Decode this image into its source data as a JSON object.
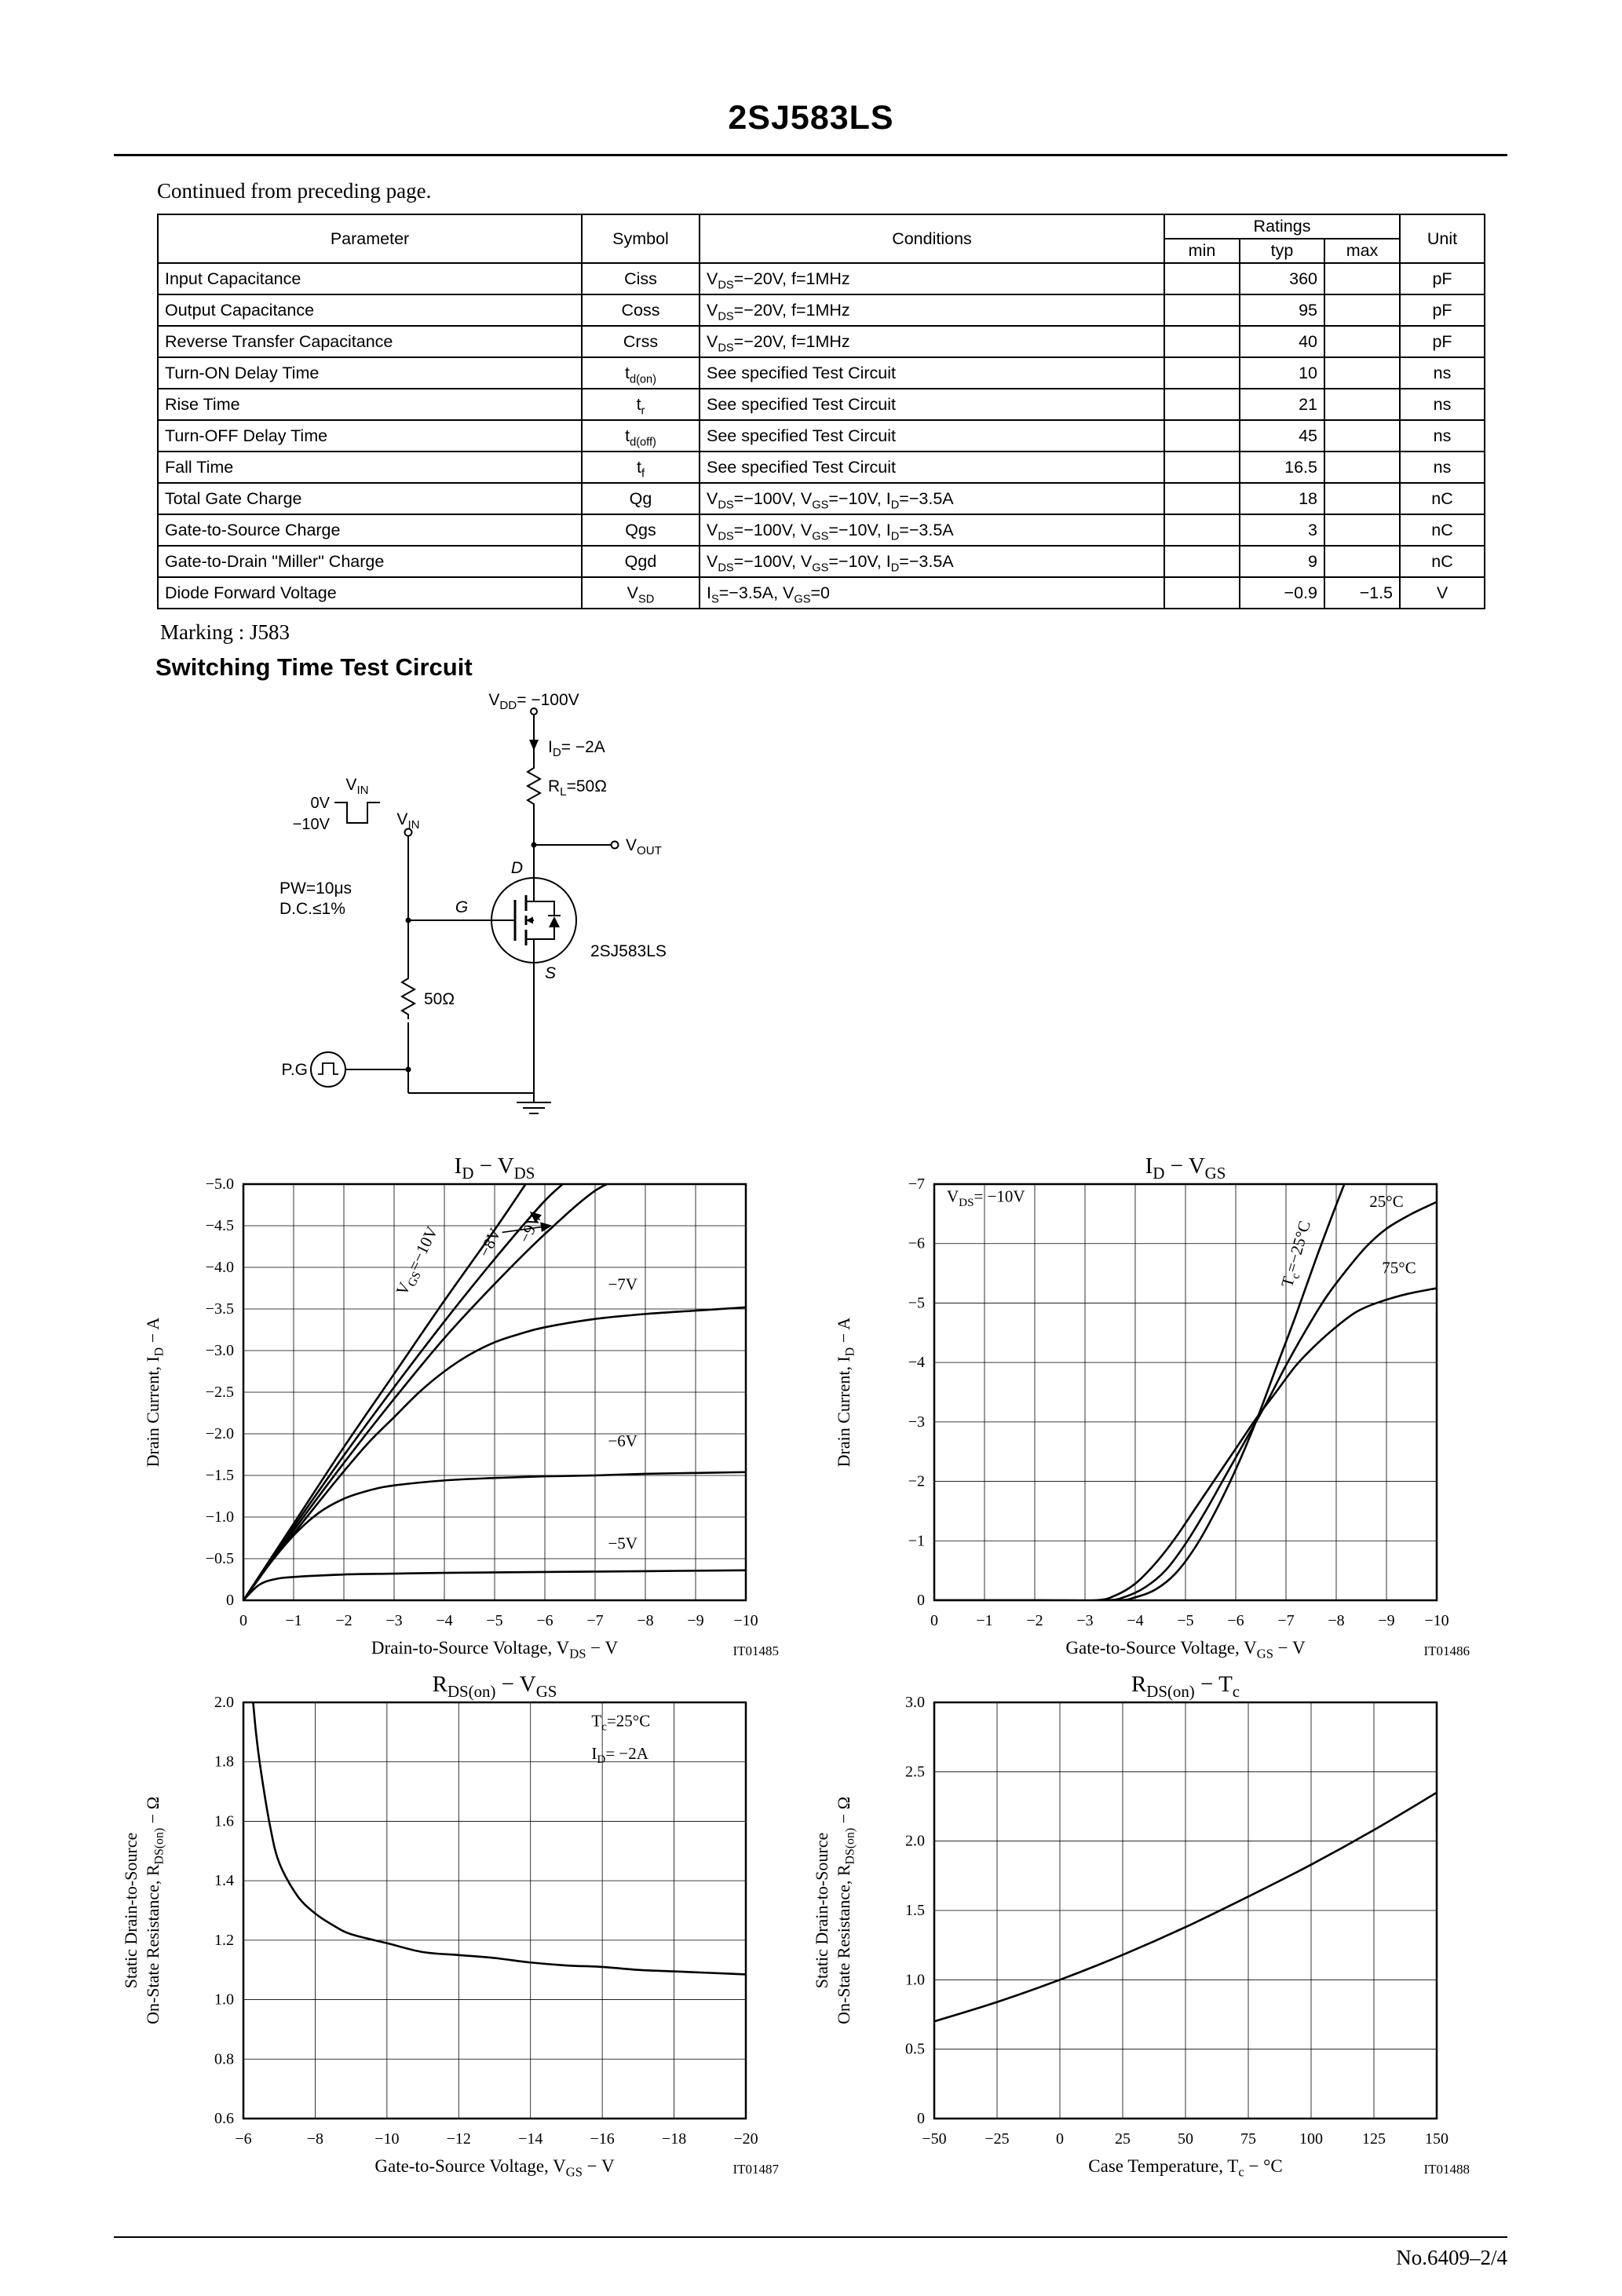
{
  "page": {
    "title": "2SJ583LS",
    "continued": "Continued from preceding page.",
    "marking": "Marking : J583",
    "section_heading": "Switching Time Test Circuit",
    "footer": "No.6409–2/4"
  },
  "table": {
    "header": {
      "parameter": "Parameter",
      "symbol": "Symbol",
      "conditions": "Conditions",
      "ratings": "Ratings",
      "min": "min",
      "typ": "typ",
      "max": "max",
      "unit": "Unit"
    },
    "rows": [
      {
        "parameter": "Input Capacitance",
        "symbol": "Ciss",
        "conditions": "V_{DS}=−20V, f=1MHz",
        "min": "",
        "typ": "360",
        "max": "",
        "unit": "pF"
      },
      {
        "parameter": "Output Capacitance",
        "symbol": "Coss",
        "conditions": "V_{DS}=−20V, f=1MHz",
        "min": "",
        "typ": "95",
        "max": "",
        "unit": "pF"
      },
      {
        "parameter": "Reverse Transfer Capacitance",
        "symbol": "Crss",
        "conditions": "V_{DS}=−20V, f=1MHz",
        "min": "",
        "typ": "40",
        "max": "",
        "unit": "pF"
      },
      {
        "parameter": "Turn-ON Delay Time",
        "symbol": "t_{d(on)}",
        "conditions": "See specified Test Circuit",
        "min": "",
        "typ": "10",
        "max": "",
        "unit": "ns"
      },
      {
        "parameter": "Rise Time",
        "symbol": "t_{r}",
        "conditions": "See specified Test Circuit",
        "min": "",
        "typ": "21",
        "max": "",
        "unit": "ns"
      },
      {
        "parameter": "Turn-OFF Delay Time",
        "symbol": "t_{d(off)}",
        "conditions": "See specified Test Circuit",
        "min": "",
        "typ": "45",
        "max": "",
        "unit": "ns"
      },
      {
        "parameter": "Fall Time",
        "symbol": "t_{f}",
        "conditions": "See specified Test Circuit",
        "min": "",
        "typ": "16.5",
        "max": "",
        "unit": "ns"
      },
      {
        "parameter": "Total Gate Charge",
        "symbol": "Qg",
        "conditions": "V_{DS}=−100V, V_{GS}=−10V, I_{D}=−3.5A",
        "min": "",
        "typ": "18",
        "max": "",
        "unit": "nC"
      },
      {
        "parameter": "Gate-to-Source Charge",
        "symbol": "Qgs",
        "conditions": "V_{DS}=−100V, V_{GS}=−10V, I_{D}=−3.5A",
        "min": "",
        "typ": "3",
        "max": "",
        "unit": "nC"
      },
      {
        "parameter": "Gate-to-Drain \"Miller\" Charge",
        "symbol": "Qgd",
        "conditions": "V_{DS}=−100V, V_{GS}=−10V, I_{D}=−3.5A",
        "min": "",
        "typ": "9",
        "max": "",
        "unit": "nC"
      },
      {
        "parameter": "Diode Forward Voltage",
        "symbol": "V_{SD}",
        "conditions": "I_{S}=−3.5A, V_{GS}=0",
        "min": "",
        "typ": "−0.9",
        "max": "−1.5",
        "unit": "V"
      }
    ]
  },
  "circuit": {
    "labels": {
      "vdd": "V_{DD}= −100V",
      "id": "I_{D}= −2A",
      "rl": "R_{L}=50Ω",
      "vout": "V_{OUT}",
      "vin": "V_{IN}",
      "vin_wave": "V_{IN}",
      "v0": "0V",
      "vm10": "−10V",
      "pw": "PW=10μs",
      "dc": "D.C.≤1%",
      "pg": "P.G",
      "r50": "50Ω",
      "d": "D",
      "g": "G",
      "s": "S",
      "device": "2SJ583LS"
    }
  },
  "chart_data": [
    {
      "type": "line",
      "title": "I_{D} − V_{DS}",
      "ref": "IT01485",
      "xlabel": "Drain-to-Source Voltage, V_{DS} − V",
      "ylabel_lines": [
        "Drain Current, I_{D} − A"
      ],
      "xlim": [
        0,
        -10
      ],
      "ylim": [
        0,
        -5
      ],
      "grid": true,
      "xtick_vals": [
        0,
        -1,
        -2,
        -3,
        -4,
        -5,
        -6,
        -7,
        -8,
        -9,
        -10
      ],
      "xtick_labels": [
        "0",
        "−1",
        "−2",
        "−3",
        "−4",
        "−5",
        "−6",
        "−7",
        "−8",
        "−9",
        "−10"
      ],
      "ytick_vals": [
        0,
        -0.5,
        -1,
        -1.5,
        -2,
        -2.5,
        -3,
        -3.5,
        -4,
        -4.5,
        -5
      ],
      "ytick_labels": [
        "0",
        "−0.5",
        "−1.0",
        "−1.5",
        "−2.0",
        "−2.5",
        "−3.0",
        "−3.5",
        "−4.0",
        "−4.5",
        "−5.0"
      ],
      "series": [
        {
          "name": "VGS=−10V",
          "points": [
            [
              0,
              0
            ],
            [
              -1,
              -0.92
            ],
            [
              -2,
              -1.84
            ],
            [
              -3,
              -2.72
            ],
            [
              -4,
              -3.6
            ],
            [
              -5,
              -4.45
            ],
            [
              -5.75,
              -5.12
            ]
          ]
        },
        {
          "name": "VGS=−9V",
          "points": [
            [
              0,
              0
            ],
            [
              -1,
              -0.88
            ],
            [
              -2,
              -1.74
            ],
            [
              -3,
              -2.56
            ],
            [
              -4,
              -3.35
            ],
            [
              -5,
              -4.1
            ],
            [
              -6,
              -4.8
            ],
            [
              -6.6,
              -5.12
            ]
          ]
        },
        {
          "name": "VGS=−8V",
          "points": [
            [
              0,
              0
            ],
            [
              -1,
              -0.84
            ],
            [
              -2,
              -1.65
            ],
            [
              -3,
              -2.42
            ],
            [
              -4,
              -3.15
            ],
            [
              -5,
              -3.8
            ],
            [
              -6,
              -4.4
            ],
            [
              -7,
              -4.92
            ],
            [
              -7.75,
              -5.12
            ]
          ]
        },
        {
          "name": "VGS=−7V",
          "points": [
            [
              0,
              0
            ],
            [
              -0.5,
              -0.42
            ],
            [
              -1,
              -0.8
            ],
            [
              -1.5,
              -1.18
            ],
            [
              -2,
              -1.55
            ],
            [
              -2.5,
              -1.9
            ],
            [
              -3,
              -2.2
            ],
            [
              -3.5,
              -2.5
            ],
            [
              -4,
              -2.75
            ],
            [
              -4.5,
              -2.95
            ],
            [
              -5,
              -3.1
            ],
            [
              -5.5,
              -3.2
            ],
            [
              -6,
              -3.28
            ],
            [
              -7,
              -3.38
            ],
            [
              -8,
              -3.44
            ],
            [
              -9,
              -3.48
            ],
            [
              -10,
              -3.52
            ]
          ]
        },
        {
          "name": "VGS=−6V",
          "points": [
            [
              0,
              0
            ],
            [
              -0.5,
              -0.42
            ],
            [
              -1,
              -0.78
            ],
            [
              -1.5,
              -1.05
            ],
            [
              -2,
              -1.22
            ],
            [
              -2.5,
              -1.32
            ],
            [
              -3,
              -1.38
            ],
            [
              -4,
              -1.44
            ],
            [
              -5,
              -1.47
            ],
            [
              -6,
              -1.49
            ],
            [
              -7,
              -1.5
            ],
            [
              -8,
              -1.52
            ],
            [
              -9,
              -1.53
            ],
            [
              -10,
              -1.54
            ]
          ]
        },
        {
          "name": "VGS=−5V",
          "points": [
            [
              0,
              0
            ],
            [
              -0.3,
              -0.18
            ],
            [
              -0.6,
              -0.25
            ],
            [
              -1,
              -0.28
            ],
            [
              -2,
              -0.31
            ],
            [
              -3,
              -0.32
            ],
            [
              -4,
              -0.33
            ],
            [
              -6,
              -0.34
            ],
            [
              -8,
              -0.35
            ],
            [
              -10,
              -0.36
            ]
          ]
        }
      ],
      "annotations": [
        {
          "text": "V_{GS}=−10V",
          "x": -3.55,
          "y": -4.05,
          "rot": -64
        },
        {
          "text": "−8V",
          "x": -5.0,
          "y": -4.27,
          "rot": -64,
          "leader": [
            -5.15,
            -4.42,
            -6.12,
            -4.5
          ]
        },
        {
          "text": "−9V",
          "x": -5.8,
          "y": -4.44,
          "rot": -64,
          "leader": [
            -5.9,
            -4.57,
            -5.72,
            -4.66
          ]
        },
        {
          "text": "−7V",
          "x": -7.55,
          "y": -3.73
        },
        {
          "text": "−6V",
          "x": -7.55,
          "y": -1.85
        },
        {
          "text": "−5V",
          "x": -7.55,
          "y": -0.62
        }
      ]
    },
    {
      "type": "line",
      "title": "I_{D} − V_{GS}",
      "ref": "IT01486",
      "xlabel": "Gate-to-Source Voltage, V_{GS} − V",
      "ylabel_lines": [
        "Drain Current, I_{D} − A"
      ],
      "xlim": [
        0,
        -10
      ],
      "ylim": [
        0,
        -7
      ],
      "grid": true,
      "xtick_vals": [
        0,
        -1,
        -2,
        -3,
        -4,
        -5,
        -6,
        -7,
        -8,
        -9,
        -10
      ],
      "xtick_labels": [
        "0",
        "−1",
        "−2",
        "−3",
        "−4",
        "−5",
        "−6",
        "−7",
        "−8",
        "−9",
        "−10"
      ],
      "ytick_vals": [
        0,
        -1,
        -2,
        -3,
        -4,
        -5,
        -6,
        -7
      ],
      "ytick_labels": [
        "0",
        "−1",
        "−2",
        "−3",
        "−4",
        "−5",
        "−6",
        "−7"
      ],
      "series": [
        {
          "name": "Tc=−25°C",
          "points": [
            [
              0,
              0
            ],
            [
              -2,
              0
            ],
            [
              -3.6,
              0
            ],
            [
              -4.0,
              -0.05
            ],
            [
              -4.4,
              -0.18
            ],
            [
              -4.8,
              -0.45
            ],
            [
              -5.2,
              -0.9
            ],
            [
              -5.6,
              -1.5
            ],
            [
              -6.0,
              -2.2
            ],
            [
              -6.4,
              -3.0
            ],
            [
              -6.8,
              -3.9
            ],
            [
              -7.2,
              -4.8
            ],
            [
              -7.6,
              -5.75
            ],
            [
              -8.0,
              -6.65
            ],
            [
              -8.3,
              -7.3
            ]
          ]
        },
        {
          "name": "Tc=25°C",
          "points": [
            [
              0,
              0
            ],
            [
              -2,
              0
            ],
            [
              -3.4,
              0
            ],
            [
              -3.8,
              -0.06
            ],
            [
              -4.2,
              -0.22
            ],
            [
              -4.6,
              -0.5
            ],
            [
              -5.0,
              -0.95
            ],
            [
              -5.4,
              -1.5
            ],
            [
              -5.8,
              -2.1
            ],
            [
              -6.2,
              -2.7
            ],
            [
              -6.6,
              -3.3
            ],
            [
              -7.0,
              -3.95
            ],
            [
              -7.4,
              -4.55
            ],
            [
              -7.8,
              -5.1
            ],
            [
              -8.2,
              -5.55
            ],
            [
              -8.6,
              -5.95
            ],
            [
              -9.0,
              -6.25
            ],
            [
              -9.5,
              -6.5
            ],
            [
              -10,
              -6.7
            ]
          ]
        },
        {
          "name": "Tc=75°C",
          "points": [
            [
              0,
              0
            ],
            [
              -2,
              0
            ],
            [
              -3.2,
              0
            ],
            [
              -3.6,
              -0.08
            ],
            [
              -4.0,
              -0.28
            ],
            [
              -4.4,
              -0.62
            ],
            [
              -4.8,
              -1.05
            ],
            [
              -5.2,
              -1.55
            ],
            [
              -5.6,
              -2.05
            ],
            [
              -6.0,
              -2.55
            ],
            [
              -6.4,
              -3.05
            ],
            [
              -6.8,
              -3.5
            ],
            [
              -7.2,
              -3.95
            ],
            [
              -7.6,
              -4.3
            ],
            [
              -8.0,
              -4.6
            ],
            [
              -8.4,
              -4.85
            ],
            [
              -8.8,
              -5.0
            ],
            [
              -9.4,
              -5.15
            ],
            [
              -10,
              -5.25
            ]
          ]
        }
      ],
      "annotations": [
        {
          "text": "V_{DS}= −10V",
          "x": -0.25,
          "y": -6.7,
          "anchor": "start"
        },
        {
          "text": "T_{c}=−25°C",
          "x": -7.3,
          "y": -5.8,
          "rot": -74
        },
        {
          "text": "25°C",
          "x": -9.0,
          "y": -6.62
        },
        {
          "text": "75°C",
          "x": -9.25,
          "y": -5.5
        }
      ]
    },
    {
      "type": "line",
      "title": "R_{DS(on)} − V_{GS}",
      "ref": "IT01487",
      "xlabel": "Gate-to-Source Voltage, V_{GS} − V",
      "ylabel_lines": [
        "Static Drain-to-Source",
        "On-State Resistance, R_{DS(on)} − Ω"
      ],
      "xlim": [
        -6,
        -20
      ],
      "ylim": [
        0.6,
        2.0
      ],
      "grid": true,
      "xtick_vals": [
        -6,
        -8,
        -10,
        -12,
        -14,
        -16,
        -18,
        -20
      ],
      "xtick_labels": [
        "−6",
        "−8",
        "−10",
        "−12",
        "−14",
        "−16",
        "−18",
        "−20"
      ],
      "ytick_vals": [
        0.6,
        0.8,
        1.0,
        1.2,
        1.4,
        1.6,
        1.8,
        2.0
      ],
      "ytick_labels": [
        "0.6",
        "0.8",
        "1.0",
        "1.2",
        "1.4",
        "1.6",
        "1.8",
        "2.0"
      ],
      "series": [
        {
          "name": "RDS(on)",
          "points": [
            [
              -6.2,
              2.1
            ],
            [
              -6.35,
              1.9
            ],
            [
              -6.5,
              1.76
            ],
            [
              -6.75,
              1.58
            ],
            [
              -7,
              1.46
            ],
            [
              -7.5,
              1.35
            ],
            [
              -8,
              1.29
            ],
            [
              -8.5,
              1.25
            ],
            [
              -9,
              1.22
            ],
            [
              -10,
              1.19
            ],
            [
              -11,
              1.16
            ],
            [
              -12,
              1.15
            ],
            [
              -13,
              1.14
            ],
            [
              -14,
              1.125
            ],
            [
              -15,
              1.115
            ],
            [
              -16,
              1.11
            ],
            [
              -17,
              1.1
            ],
            [
              -18,
              1.095
            ],
            [
              -19,
              1.09
            ],
            [
              -20,
              1.085
            ]
          ]
        }
      ],
      "annotations": [
        {
          "text": "T_{c}=25°C",
          "x": -15.7,
          "y": 1.92,
          "anchor": "start"
        },
        {
          "text": "I_{D}= −2A",
          "x": -15.7,
          "y": 1.81,
          "anchor": "start"
        }
      ]
    },
    {
      "type": "line",
      "title": "R_{DS(on)} − T_{c}",
      "ref": "IT01488",
      "xlabel": "Case Temperature, T_{c} − °C",
      "ylabel_lines": [
        "Static Drain-to-Source",
        "On-State Resistance, R_{DS(on)} − Ω"
      ],
      "xlim": [
        -50,
        150
      ],
      "ylim": [
        0,
        3.0
      ],
      "grid": true,
      "xtick_vals": [
        -50,
        -25,
        0,
        25,
        50,
        75,
        100,
        125,
        150
      ],
      "xtick_labels": [
        "−50",
        "−25",
        "0",
        "25",
        "50",
        "75",
        "100",
        "125",
        "150"
      ],
      "ytick_vals": [
        0,
        0.5,
        1.0,
        1.5,
        2.0,
        2.5,
        3.0
      ],
      "ytick_labels": [
        "0",
        "0.5",
        "1.0",
        "1.5",
        "2.0",
        "2.5",
        "3.0"
      ],
      "series": [
        {
          "name": "RDS(on)",
          "points": [
            [
              -50,
              0.7
            ],
            [
              -25,
              0.84
            ],
            [
              0,
              1.0
            ],
            [
              25,
              1.18
            ],
            [
              50,
              1.38
            ],
            [
              75,
              1.6
            ],
            [
              100,
              1.83
            ],
            [
              125,
              2.08
            ],
            [
              150,
              2.35
            ]
          ]
        }
      ],
      "annotations": []
    }
  ]
}
